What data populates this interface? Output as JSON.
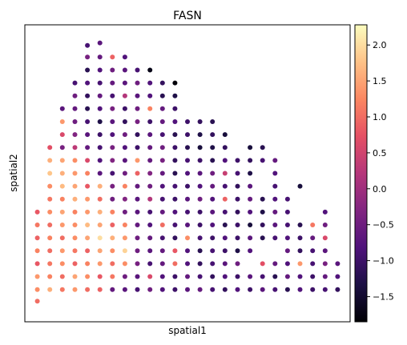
{
  "chart_data": {
    "type": "scatter",
    "title": "FASN",
    "xlabel": "spatial1",
    "ylabel": "spatial2",
    "grid": false,
    "colorbar": {
      "colormap": "magma",
      "vmin": -1.85,
      "vmax": 2.28,
      "ticks": [
        2.0,
        1.5,
        1.0,
        0.5,
        0.0,
        -0.5,
        -1.0,
        -1.5
      ],
      "tick_labels": [
        "2.0",
        "1.5",
        "1.0",
        "0.5",
        "0.0",
        "−0.5",
        "−1.0",
        "−1.5"
      ]
    },
    "xlim": [
      0,
      26
    ],
    "ylim": [
      0,
      23
    ],
    "points": [
      [
        5,
        21.4,
        -0.9
      ],
      [
        6,
        21.6,
        -0.7
      ],
      [
        5,
        20.5,
        -0.4
      ],
      [
        6,
        20.5,
        -0.6
      ],
      [
        7,
        20.5,
        0.9
      ],
      [
        8,
        20.5,
        -0.8
      ],
      [
        5,
        19.5,
        -1.2
      ],
      [
        6,
        19.5,
        -0.8
      ],
      [
        7,
        19.5,
        -0.5
      ],
      [
        8,
        19.5,
        -0.7
      ],
      [
        9,
        19.5,
        -0.9
      ],
      [
        10,
        19.5,
        -1.7
      ],
      [
        4,
        18.5,
        -0.9
      ],
      [
        5,
        18.5,
        -0.8
      ],
      [
        6,
        18.5,
        -0.9
      ],
      [
        7,
        18.5,
        -0.6
      ],
      [
        8,
        18.5,
        -0.7
      ],
      [
        9,
        18.5,
        -0.5
      ],
      [
        10,
        18.5,
        -0.8
      ],
      [
        11,
        18.5,
        -1.1
      ],
      [
        12,
        18.5,
        -1.8
      ],
      [
        4,
        17.5,
        -0.5
      ],
      [
        5,
        17.5,
        -1.1
      ],
      [
        6,
        17.5,
        -0.6
      ],
      [
        7,
        17.5,
        -0.9
      ],
      [
        8,
        17.5,
        0.2
      ],
      [
        9,
        17.5,
        -0.7
      ],
      [
        10,
        17.5,
        -0.8
      ],
      [
        11,
        17.5,
        -1.2
      ],
      [
        12,
        17.5,
        -1.3
      ],
      [
        3,
        16.5,
        -0.7
      ],
      [
        4,
        16.5,
        -0.6
      ],
      [
        5,
        16.5,
        -1.2
      ],
      [
        6,
        16.5,
        -0.8
      ],
      [
        7,
        16.5,
        -0.4
      ],
      [
        8,
        16.5,
        -1.0
      ],
      [
        9,
        16.5,
        -0.5
      ],
      [
        10,
        16.5,
        1.2
      ],
      [
        11,
        16.5,
        -0.6
      ],
      [
        12,
        16.5,
        -1.0
      ],
      [
        3,
        15.5,
        1.4
      ],
      [
        4,
        15.5,
        -0.5
      ],
      [
        5,
        15.5,
        -0.9
      ],
      [
        6,
        15.5,
        -1.3
      ],
      [
        7,
        15.5,
        -0.7
      ],
      [
        8,
        15.5,
        -1.1
      ],
      [
        9,
        15.5,
        -0.4
      ],
      [
        10,
        15.5,
        -1.0
      ],
      [
        11,
        15.5,
        -0.6
      ],
      [
        12,
        15.5,
        -0.8
      ],
      [
        13,
        15.5,
        -1.0
      ],
      [
        14,
        15.5,
        -1.1
      ],
      [
        15,
        15.5,
        -1.2
      ],
      [
        3,
        14.5,
        0.6
      ],
      [
        4,
        14.5,
        -0.3
      ],
      [
        5,
        14.5,
        -0.7
      ],
      [
        6,
        14.5,
        -1.0
      ],
      [
        7,
        14.5,
        -0.8
      ],
      [
        8,
        14.5,
        -0.5
      ],
      [
        9,
        14.5,
        -1.1
      ],
      [
        10,
        14.5,
        -0.7
      ],
      [
        11,
        14.5,
        -0.9
      ],
      [
        12,
        14.5,
        -1.2
      ],
      [
        13,
        14.5,
        -1.0
      ],
      [
        14,
        14.5,
        -1.3
      ],
      [
        15,
        14.5,
        -1.1
      ],
      [
        16,
        14.5,
        -1.4
      ],
      [
        2,
        13.5,
        0.7
      ],
      [
        3,
        13.5,
        -0.4
      ],
      [
        4,
        13.5,
        0.3
      ],
      [
        5,
        13.5,
        -0.6
      ],
      [
        6,
        13.5,
        -0.9
      ],
      [
        7,
        13.5,
        -0.4
      ],
      [
        8,
        13.5,
        -0.8
      ],
      [
        9,
        13.5,
        -1.0
      ],
      [
        10,
        13.5,
        -0.6
      ],
      [
        11,
        13.5,
        -0.5
      ],
      [
        12,
        13.5,
        -1.0
      ],
      [
        13,
        13.5,
        -1.2
      ],
      [
        14,
        13.5,
        -1.4
      ],
      [
        15,
        13.5,
        -1.3
      ],
      [
        16,
        13.5,
        -1.1
      ],
      [
        18,
        13.5,
        -1.4
      ],
      [
        19,
        13.5,
        -1.2
      ],
      [
        2,
        12.5,
        1.6
      ],
      [
        3,
        12.5,
        1.5
      ],
      [
        4,
        12.5,
        1.3
      ],
      [
        5,
        12.5,
        0.6
      ],
      [
        6,
        12.5,
        -0.8
      ],
      [
        7,
        12.5,
        -0.3
      ],
      [
        8,
        12.5,
        -0.7
      ],
      [
        9,
        12.5,
        1.4
      ],
      [
        10,
        12.5,
        -0.6
      ],
      [
        11,
        12.5,
        -0.4
      ],
      [
        12,
        12.5,
        -1.1
      ],
      [
        13,
        12.5,
        -0.9
      ],
      [
        14,
        12.5,
        -1.0
      ],
      [
        15,
        12.5,
        -1.2
      ],
      [
        16,
        12.5,
        -0.8
      ],
      [
        17,
        12.5,
        -1.0
      ],
      [
        18,
        12.5,
        -1.1
      ],
      [
        19,
        12.5,
        -0.9
      ],
      [
        20,
        12.5,
        -0.6
      ],
      [
        2,
        11.5,
        1.8
      ],
      [
        3,
        11.5,
        1.6
      ],
      [
        4,
        11.5,
        1.4
      ],
      [
        5,
        11.5,
        1.2
      ],
      [
        6,
        11.5,
        -0.7
      ],
      [
        7,
        11.5,
        -0.9
      ],
      [
        8,
        11.5,
        -0.5
      ],
      [
        9,
        11.5,
        0.9
      ],
      [
        10,
        11.5,
        -0.3
      ],
      [
        11,
        11.5,
        -0.6
      ],
      [
        12,
        11.5,
        -1.2
      ],
      [
        13,
        11.5,
        -0.8
      ],
      [
        14,
        11.5,
        -0.7
      ],
      [
        15,
        11.5,
        -0.5
      ],
      [
        16,
        11.5,
        0.4
      ],
      [
        17,
        11.5,
        -0.9
      ],
      [
        18,
        11.5,
        -1.3
      ],
      [
        20,
        11.5,
        -0.8
      ],
      [
        2,
        10.5,
        1.3
      ],
      [
        3,
        10.5,
        1.7
      ],
      [
        4,
        10.5,
        1.5
      ],
      [
        5,
        10.5,
        0.8
      ],
      [
        6,
        10.5,
        1.6
      ],
      [
        7,
        10.5,
        -0.4
      ],
      [
        8,
        10.5,
        1.2
      ],
      [
        9,
        10.5,
        -0.6
      ],
      [
        10,
        10.5,
        -0.5
      ],
      [
        11,
        10.5,
        -0.8
      ],
      [
        12,
        10.5,
        -0.9
      ],
      [
        13,
        10.5,
        -1.0
      ],
      [
        14,
        10.5,
        -0.8
      ],
      [
        15,
        10.5,
        -0.6
      ],
      [
        16,
        10.5,
        -0.9
      ],
      [
        17,
        10.5,
        -1.1
      ],
      [
        18,
        10.5,
        -0.7
      ],
      [
        20,
        10.5,
        -0.9
      ],
      [
        22,
        10.5,
        -1.4
      ],
      [
        2,
        9.5,
        1.1
      ],
      [
        3,
        9.5,
        1.2
      ],
      [
        4,
        9.5,
        1.6
      ],
      [
        5,
        9.5,
        1.4
      ],
      [
        6,
        9.5,
        1.0
      ],
      [
        7,
        9.5,
        -0.5
      ],
      [
        8,
        9.5,
        -0.3
      ],
      [
        9,
        9.5,
        -0.7
      ],
      [
        10,
        9.5,
        0.2
      ],
      [
        11,
        9.5,
        -0.9
      ],
      [
        12,
        9.5,
        -1.0
      ],
      [
        13,
        9.5,
        -0.7
      ],
      [
        14,
        9.5,
        -0.5
      ],
      [
        15,
        9.5,
        -0.8
      ],
      [
        16,
        9.5,
        0.9
      ],
      [
        17,
        9.5,
        -1.0
      ],
      [
        18,
        9.5,
        -0.6
      ],
      [
        19,
        9.5,
        -1.2
      ],
      [
        20,
        9.5,
        -0.8
      ],
      [
        21,
        9.5,
        -0.9
      ],
      [
        1,
        8.5,
        0.8
      ],
      [
        2,
        8.5,
        1.3
      ],
      [
        3,
        8.5,
        1.5
      ],
      [
        4,
        8.5,
        1.2
      ],
      [
        5,
        8.5,
        1.4
      ],
      [
        6,
        8.5,
        1.6
      ],
      [
        7,
        8.5,
        1.2
      ],
      [
        8,
        8.5,
        -0.5
      ],
      [
        9,
        8.5,
        -0.7
      ],
      [
        10,
        8.5,
        -0.9
      ],
      [
        11,
        8.5,
        -0.6
      ],
      [
        12,
        8.5,
        -0.8
      ],
      [
        13,
        8.5,
        -0.9
      ],
      [
        14,
        8.5,
        -1.0
      ],
      [
        15,
        8.5,
        -0.7
      ],
      [
        16,
        8.5,
        -0.9
      ],
      [
        17,
        8.5,
        -1.1
      ],
      [
        18,
        8.5,
        -0.8
      ],
      [
        19,
        8.5,
        -1.3
      ],
      [
        20,
        8.5,
        -0.6
      ],
      [
        21,
        8.5,
        -0.9
      ],
      [
        24,
        8.5,
        -0.8
      ],
      [
        1,
        7.5,
        1.1
      ],
      [
        2,
        7.5,
        1.0
      ],
      [
        3,
        7.5,
        1.4
      ],
      [
        4,
        7.5,
        1.3
      ],
      [
        5,
        7.5,
        1.7
      ],
      [
        6,
        7.5,
        1.5
      ],
      [
        7,
        7.5,
        0.9
      ],
      [
        8,
        7.5,
        1.2
      ],
      [
        9,
        7.5,
        -0.6
      ],
      [
        10,
        7.5,
        -0.8
      ],
      [
        11,
        7.5,
        1.0
      ],
      [
        12,
        7.5,
        -0.9
      ],
      [
        13,
        7.5,
        -0.7
      ],
      [
        14,
        7.5,
        -1.0
      ],
      [
        15,
        7.5,
        -0.8
      ],
      [
        16,
        7.5,
        -1.2
      ],
      [
        17,
        7.5,
        -1.0
      ],
      [
        18,
        7.5,
        -1.4
      ],
      [
        19,
        7.5,
        -1.1
      ],
      [
        20,
        7.5,
        -0.7
      ],
      [
        21,
        7.5,
        -0.9
      ],
      [
        22,
        7.5,
        -1.2
      ],
      [
        23,
        7.5,
        1.1
      ],
      [
        24,
        7.5,
        -0.5
      ],
      [
        1,
        6.5,
        0.9
      ],
      [
        2,
        6.5,
        1.2
      ],
      [
        3,
        6.5,
        1.0
      ],
      [
        4,
        6.5,
        1.3
      ],
      [
        5,
        6.5,
        1.5
      ],
      [
        6,
        6.5,
        2.0
      ],
      [
        7,
        6.5,
        1.6
      ],
      [
        8,
        6.5,
        1.4
      ],
      [
        9,
        6.5,
        -0.5
      ],
      [
        10,
        6.5,
        -0.6
      ],
      [
        11,
        6.5,
        -0.9
      ],
      [
        12,
        6.5,
        -1.1
      ],
      [
        13,
        6.5,
        1.3
      ],
      [
        14,
        6.5,
        -0.9
      ],
      [
        15,
        6.5,
        -1.0
      ],
      [
        16,
        6.5,
        -0.8
      ],
      [
        17,
        6.5,
        -1.0
      ],
      [
        18,
        6.5,
        -0.7
      ],
      [
        19,
        6.5,
        -1.2
      ],
      [
        20,
        6.5,
        -0.9
      ],
      [
        21,
        6.5,
        -0.8
      ],
      [
        22,
        6.5,
        -1.0
      ],
      [
        23,
        6.5,
        -0.6
      ],
      [
        24,
        6.5,
        0.6
      ],
      [
        1,
        5.5,
        1.2
      ],
      [
        2,
        5.5,
        1.0
      ],
      [
        3,
        5.5,
        1.4
      ],
      [
        4,
        5.5,
        1.1
      ],
      [
        5,
        5.5,
        0.9
      ],
      [
        6,
        5.5,
        1.5
      ],
      [
        7,
        5.5,
        1.3
      ],
      [
        8,
        5.5,
        1.9
      ],
      [
        9,
        5.5,
        -0.5
      ],
      [
        10,
        5.5,
        -0.7
      ],
      [
        11,
        5.5,
        -0.6
      ],
      [
        12,
        5.5,
        0.8
      ],
      [
        13,
        5.5,
        -0.8
      ],
      [
        14,
        5.5,
        -1.2
      ],
      [
        15,
        5.5,
        -0.9
      ],
      [
        16,
        5.5,
        -1.0
      ],
      [
        17,
        5.5,
        -1.3
      ],
      [
        18,
        5.5,
        -0.8
      ],
      [
        21,
        5.5,
        -0.6
      ],
      [
        22,
        5.5,
        -1.1
      ],
      [
        23,
        5.5,
        -0.9
      ],
      [
        24,
        5.5,
        -0.7
      ],
      [
        1,
        4.5,
        0.8
      ],
      [
        2,
        4.5,
        1.1
      ],
      [
        3,
        4.5,
        1.3
      ],
      [
        4,
        4.5,
        0.9
      ],
      [
        5,
        4.5,
        1.2
      ],
      [
        6,
        4.5,
        1.4
      ],
      [
        7,
        4.5,
        1.0
      ],
      [
        8,
        4.5,
        1.3
      ],
      [
        9,
        4.5,
        -0.4
      ],
      [
        10,
        4.5,
        -0.9
      ],
      [
        11,
        4.5,
        -0.6
      ],
      [
        12,
        4.5,
        1.0
      ],
      [
        13,
        4.5,
        -0.8
      ],
      [
        14,
        4.5,
        -1.1
      ],
      [
        15,
        4.5,
        -0.9
      ],
      [
        16,
        4.5,
        -0.7
      ],
      [
        17,
        4.5,
        -0.5
      ],
      [
        19,
        4.5,
        0.7
      ],
      [
        20,
        4.5,
        -0.6
      ],
      [
        21,
        4.5,
        -0.8
      ],
      [
        22,
        4.5,
        1.4
      ],
      [
        23,
        4.5,
        -0.9
      ],
      [
        24,
        4.5,
        -0.4
      ],
      [
        25,
        4.5,
        -0.7
      ],
      [
        1,
        3.5,
        1.4
      ],
      [
        2,
        3.5,
        1.2
      ],
      [
        3,
        3.5,
        1.0
      ],
      [
        4,
        3.5,
        1.5
      ],
      [
        5,
        3.5,
        1.3
      ],
      [
        6,
        3.5,
        0.8
      ],
      [
        7,
        3.5,
        1.1
      ],
      [
        8,
        3.5,
        -0.5
      ],
      [
        9,
        3.5,
        -0.7
      ],
      [
        10,
        3.5,
        0.6
      ],
      [
        11,
        3.5,
        -0.8
      ],
      [
        12,
        3.5,
        -1.0
      ],
      [
        13,
        3.5,
        -0.6
      ],
      [
        14,
        3.5,
        -0.9
      ],
      [
        15,
        3.5,
        -1.1
      ],
      [
        16,
        3.5,
        -0.8
      ],
      [
        17,
        3.5,
        -1.0
      ],
      [
        18,
        3.5,
        -0.7
      ],
      [
        19,
        3.5,
        -0.9
      ],
      [
        20,
        3.5,
        -1.2
      ],
      [
        21,
        3.5,
        -0.6
      ],
      [
        22,
        3.5,
        -0.8
      ],
      [
        23,
        3.5,
        -1.0
      ],
      [
        24,
        3.5,
        -0.6
      ],
      [
        25,
        3.5,
        -0.8
      ],
      [
        1,
        2.5,
        1.3
      ],
      [
        2,
        2.5,
        1.6
      ],
      [
        3,
        2.5,
        1.1
      ],
      [
        4,
        2.5,
        1.4
      ],
      [
        5,
        2.5,
        1.0
      ],
      [
        6,
        2.5,
        0.9
      ],
      [
        7,
        2.5,
        -0.6
      ],
      [
        8,
        2.5,
        -0.7
      ],
      [
        9,
        2.5,
        -0.9
      ],
      [
        10,
        2.5,
        -0.5
      ],
      [
        11,
        2.5,
        -0.8
      ],
      [
        12,
        2.5,
        -1.0
      ],
      [
        13,
        2.5,
        -0.7
      ],
      [
        14,
        2.5,
        -0.6
      ],
      [
        15,
        2.5,
        -0.9
      ],
      [
        16,
        2.5,
        -1.1
      ],
      [
        17,
        2.5,
        -0.8
      ],
      [
        18,
        2.5,
        -1.0
      ],
      [
        19,
        2.5,
        -0.7
      ],
      [
        20,
        2.5,
        -0.9
      ],
      [
        21,
        2.5,
        -1.2
      ],
      [
        22,
        2.5,
        -0.8
      ],
      [
        23,
        2.5,
        -1.0
      ],
      [
        24,
        2.5,
        -0.9
      ],
      [
        25,
        2.5,
        -1.1
      ],
      [
        1,
        1.6,
        1.0
      ]
    ]
  }
}
